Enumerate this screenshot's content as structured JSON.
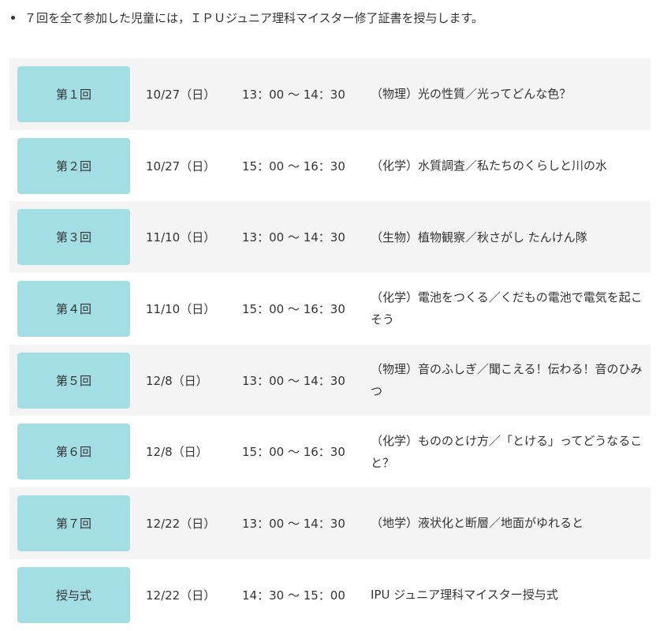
{
  "note": "７回を全て参加した児童には，ＩＰＵジュニア理科マイスター修了証書を授与します。",
  "sessions": [
    {
      "label": "第１回",
      "date": "10/27（日）",
      "time": "13：00 ～ 14：30",
      "topic": "（物理）光の性質／光ってどんな色？"
    },
    {
      "label": "第２回",
      "date": "10/27（日）",
      "time": "15：00 ～ 16：30",
      "topic": "（化学）水質調査／私たちのくらしと川の水"
    },
    {
      "label": "第３回",
      "date": "11/10（日）",
      "time": "13：00 ～ 14：30",
      "topic": "（生物）植物観察／秋さがし たんけん隊"
    },
    {
      "label": "第４回",
      "date": "11/10（日）",
      "time": "15：00 ～ 16：30",
      "topic": "（化学）電池をつくる／くだもの電池で電気を起こそう"
    },
    {
      "label": "第５回",
      "date": "12/8（日）",
      "time": "13：00 ～ 14：30",
      "topic": "（物理）音のふしぎ／聞こえる！伝わる！音のひみつ"
    },
    {
      "label": "第６回",
      "date": "12/8（日）",
      "time": "15：00 ～ 16：30",
      "topic": "（化学）もののとけ方／「とける」ってどうなること？"
    },
    {
      "label": "第７回",
      "date": "12/22（日）",
      "time": "13：00 ～ 14：30",
      "topic": "（地学）液状化と断層／地面がゆれると"
    },
    {
      "label": "授与式",
      "date": "12/22（日）",
      "time": "14：30 ～ 15：00",
      "topic": "IPU ジュニア理科マイスター授与式"
    }
  ],
  "colors": {
    "label_bg": "#a3dee4",
    "row_alt_bg": "#f4f4f4"
  }
}
